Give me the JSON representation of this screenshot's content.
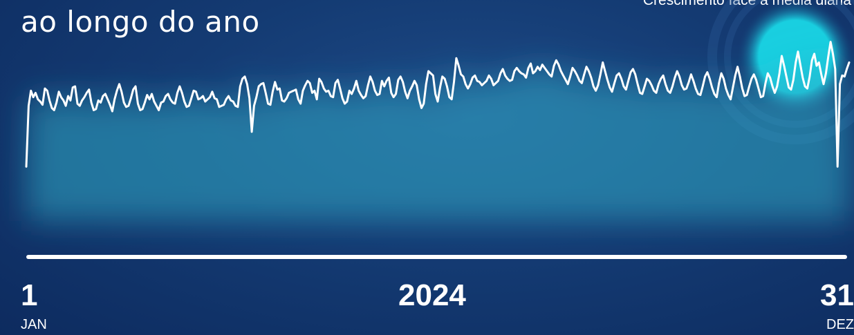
{
  "header": {
    "title": "ao longo do ano",
    "subtitle": "Crescimento face à média diária"
  },
  "timeline": {
    "start_day": "1",
    "start_month": "JAN",
    "year": "2024",
    "end_day": "31",
    "end_month": "DEZ"
  },
  "colors": {
    "background": "#143b73",
    "line": "#ffffff",
    "glow": "#2fa7c4",
    "highlight": "#19cfe0"
  },
  "chart_data": {
    "type": "line",
    "x_range": [
      "2024-01-01",
      "2024-12-31"
    ],
    "grid": false,
    "legend": "none",
    "series": [
      {
        "values": [
          0.12,
          0.68,
          0.82,
          0.76,
          0.8,
          0.74,
          0.72,
          0.69,
          0.84,
          0.82,
          0.73,
          0.66,
          0.64,
          0.71,
          0.81,
          0.76,
          0.73,
          0.68,
          0.77,
          0.73,
          0.85,
          0.86,
          0.7,
          0.68,
          0.73,
          0.76,
          0.8,
          0.83,
          0.71,
          0.64,
          0.65,
          0.73,
          0.71,
          0.77,
          0.79,
          0.74,
          0.69,
          0.63,
          0.74,
          0.82,
          0.88,
          0.81,
          0.71,
          0.67,
          0.68,
          0.75,
          0.83,
          0.86,
          0.7,
          0.64,
          0.65,
          0.71,
          0.78,
          0.74,
          0.79,
          0.72,
          0.68,
          0.64,
          0.71,
          0.72,
          0.77,
          0.79,
          0.74,
          0.71,
          0.7,
          0.8,
          0.86,
          0.8,
          0.72,
          0.67,
          0.68,
          0.75,
          0.82,
          0.81,
          0.74,
          0.75,
          0.77,
          0.72,
          0.74,
          0.76,
          0.81,
          0.75,
          0.74,
          0.67,
          0.68,
          0.69,
          0.74,
          0.77,
          0.73,
          0.72,
          0.68,
          0.67,
          0.86,
          0.93,
          0.95,
          0.88,
          0.75,
          0.44,
          0.68,
          0.76,
          0.86,
          0.88,
          0.89,
          0.8,
          0.7,
          0.69,
          0.81,
          0.9,
          0.83,
          0.84,
          0.73,
          0.72,
          0.75,
          0.8,
          0.81,
          0.82,
          0.83,
          0.74,
          0.7,
          0.82,
          0.87,
          0.91,
          0.89,
          0.8,
          0.82,
          0.74,
          0.93,
          0.9,
          0.84,
          0.81,
          0.82,
          0.77,
          0.76,
          0.89,
          0.92,
          0.84,
          0.75,
          0.7,
          0.72,
          0.82,
          0.79,
          0.84,
          0.91,
          0.82,
          0.78,
          0.75,
          0.77,
          0.87,
          0.95,
          0.9,
          0.82,
          0.78,
          0.79,
          0.91,
          0.86,
          0.91,
          0.94,
          0.8,
          0.76,
          0.79,
          0.92,
          0.95,
          0.9,
          0.81,
          0.75,
          0.82,
          0.86,
          0.91,
          0.87,
          0.74,
          0.66,
          0.7,
          0.88,
          1.0,
          0.98,
          0.96,
          0.79,
          0.72,
          0.85,
          0.95,
          0.93,
          0.86,
          0.76,
          0.74,
          0.9,
          1.12,
          1.05,
          0.97,
          0.95,
          0.88,
          0.84,
          0.88,
          0.94,
          0.96,
          0.91,
          0.9,
          0.87,
          0.89,
          0.91,
          0.96,
          0.93,
          0.87,
          0.89,
          0.91,
          0.98,
          1.02,
          0.96,
          0.93,
          0.91,
          0.92,
          1.0,
          1.03,
          1.0,
          0.98,
          0.97,
          0.94,
          1.03,
          1.07,
          0.98,
          1.0,
          1.04,
          1.01,
          1.06,
          1.03,
          1.0,
          0.97,
          0.95,
          1.05,
          1.1,
          1.06,
          1.0,
          0.96,
          0.92,
          0.88,
          0.95,
          1.03,
          1.0,
          0.96,
          0.91,
          0.89,
          0.97,
          1.04,
          1.0,
          0.94,
          0.86,
          0.82,
          0.87,
          0.97,
          1.08,
          1.0,
          0.92,
          0.85,
          0.81,
          0.89,
          0.96,
          0.98,
          0.93,
          0.86,
          0.83,
          0.91,
          0.99,
          1.02,
          0.97,
          0.88,
          0.8,
          0.79,
          0.86,
          0.93,
          0.91,
          0.87,
          0.82,
          0.8,
          0.88,
          0.93,
          0.96,
          0.88,
          0.82,
          0.8,
          0.86,
          0.94,
          1.0,
          0.95,
          0.87,
          0.83,
          0.84,
          0.9,
          0.97,
          0.91,
          0.84,
          0.79,
          0.78,
          0.86,
          0.95,
          0.99,
          0.93,
          0.85,
          0.79,
          0.76,
          0.89,
          0.98,
          0.93,
          0.84,
          0.78,
          0.74,
          0.85,
          0.96,
          1.04,
          0.95,
          0.84,
          0.77,
          0.78,
          0.86,
          0.93,
          0.97,
          0.92,
          0.84,
          0.76,
          0.77,
          0.89,
          0.98,
          0.94,
          0.86,
          0.8,
          0.86,
          0.98,
          1.14,
          1.05,
          0.95,
          0.85,
          0.83,
          0.92,
          1.08,
          1.18,
          1.06,
          0.94,
          0.86,
          0.84,
          0.95,
          1.1,
          1.16,
          1.05,
          1.08,
          0.97,
          0.88,
          0.98,
          1.13,
          1.27,
          1.16,
          1.02,
          0.12,
          0.88,
          0.96,
          0.95,
          1.02,
          1.08
        ]
      }
    ]
  }
}
